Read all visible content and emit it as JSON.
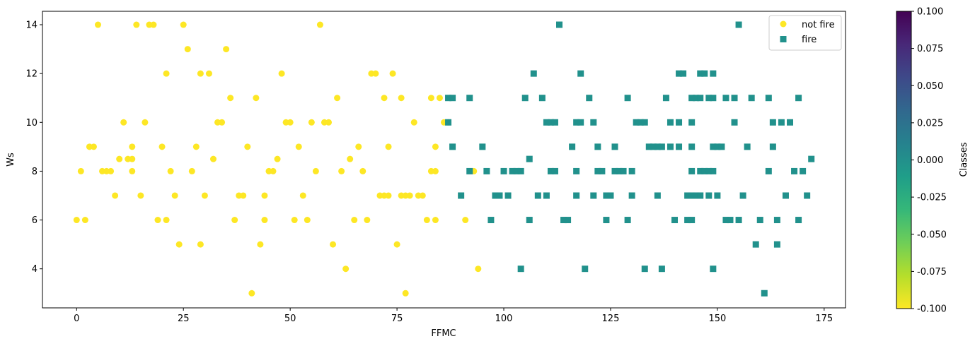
{
  "chart_data": {
    "type": "scatter",
    "xlabel": "FFMC",
    "ylabel": "Ws",
    "xlim": [
      -8,
      180
    ],
    "ylim": [
      2.4,
      14.55
    ],
    "xticks": [
      0,
      25,
      50,
      75,
      100,
      125,
      150,
      175
    ],
    "yticks": [
      4,
      6,
      8,
      10,
      12,
      14
    ],
    "grid": false,
    "legend": "top-right",
    "series": [
      {
        "name": "not fire",
        "marker": "circle",
        "color": "#fde725",
        "points": [
          [
            0,
            6
          ],
          [
            1,
            8
          ],
          [
            2,
            6
          ],
          [
            3,
            9
          ],
          [
            4,
            9
          ],
          [
            5,
            14
          ],
          [
            6,
            8
          ],
          [
            7,
            8
          ],
          [
            8,
            8
          ],
          [
            9,
            7
          ],
          [
            10,
            8.5
          ],
          [
            11,
            10
          ],
          [
            12,
            8.5
          ],
          [
            13,
            8.5
          ],
          [
            13,
            9
          ],
          [
            13,
            8
          ],
          [
            14,
            14
          ],
          [
            15,
            7
          ],
          [
            16,
            10
          ],
          [
            17,
            14
          ],
          [
            18,
            14
          ],
          [
            19,
            6
          ],
          [
            20,
            9
          ],
          [
            21,
            12
          ],
          [
            21,
            6
          ],
          [
            22,
            8
          ],
          [
            23,
            7
          ],
          [
            24,
            5
          ],
          [
            25,
            14
          ],
          [
            26,
            13
          ],
          [
            27,
            8
          ],
          [
            28,
            9
          ],
          [
            29,
            12
          ],
          [
            29,
            5
          ],
          [
            30,
            7
          ],
          [
            31,
            12
          ],
          [
            32,
            8.5
          ],
          [
            33,
            10
          ],
          [
            34,
            10
          ],
          [
            35,
            13
          ],
          [
            36,
            11
          ],
          [
            37,
            6
          ],
          [
            38,
            7
          ],
          [
            39,
            7
          ],
          [
            40,
            9
          ],
          [
            41,
            3
          ],
          [
            42,
            11
          ],
          [
            43,
            5
          ],
          [
            44,
            7
          ],
          [
            44,
            6
          ],
          [
            45,
            8
          ],
          [
            46,
            8
          ],
          [
            47,
            8.5
          ],
          [
            48,
            12
          ],
          [
            49,
            10
          ],
          [
            50,
            10
          ],
          [
            51,
            6
          ],
          [
            52,
            9
          ],
          [
            53,
            7
          ],
          [
            54,
            6
          ],
          [
            55,
            10
          ],
          [
            56,
            8
          ],
          [
            57,
            14
          ],
          [
            58,
            10
          ],
          [
            59,
            10
          ],
          [
            60,
            5
          ],
          [
            61,
            11
          ],
          [
            62,
            8
          ],
          [
            63,
            4
          ],
          [
            64,
            8.5
          ],
          [
            65,
            6
          ],
          [
            66,
            9
          ],
          [
            67,
            8
          ],
          [
            68,
            6
          ],
          [
            69,
            12
          ],
          [
            70,
            12
          ],
          [
            71,
            7
          ],
          [
            72,
            11
          ],
          [
            72,
            7
          ],
          [
            73,
            9
          ],
          [
            73,
            7
          ],
          [
            74,
            12
          ],
          [
            75,
            5
          ],
          [
            76,
            11
          ],
          [
            76,
            7
          ],
          [
            77,
            3
          ],
          [
            77,
            7
          ],
          [
            78,
            7
          ],
          [
            79,
            10
          ],
          [
            80,
            7
          ],
          [
            81,
            7
          ],
          [
            82,
            6
          ],
          [
            83,
            11
          ],
          [
            83,
            8
          ],
          [
            84,
            9
          ],
          [
            84,
            8
          ],
          [
            84,
            6
          ],
          [
            85,
            11
          ],
          [
            86,
            10
          ],
          [
            87,
            10
          ],
          [
            90,
            7
          ],
          [
            91,
            6
          ],
          [
            93,
            8
          ],
          [
            94,
            4
          ]
        ]
      },
      {
        "name": "fire",
        "marker": "square",
        "color": "#21918c",
        "points": [
          [
            87,
            10
          ],
          [
            87,
            11
          ],
          [
            88,
            11
          ],
          [
            88,
            9
          ],
          [
            90,
            7
          ],
          [
            92,
            11
          ],
          [
            92,
            8
          ],
          [
            95,
            9
          ],
          [
            96,
            8
          ],
          [
            97,
            6
          ],
          [
            98,
            7
          ],
          [
            99,
            7
          ],
          [
            100,
            8
          ],
          [
            101,
            7
          ],
          [
            102,
            8
          ],
          [
            103,
            8
          ],
          [
            104,
            8
          ],
          [
            104,
            4
          ],
          [
            105,
            11
          ],
          [
            106,
            6
          ],
          [
            106,
            8.5
          ],
          [
            107,
            12
          ],
          [
            108,
            7
          ],
          [
            109,
            11
          ],
          [
            110,
            10
          ],
          [
            110,
            7
          ],
          [
            111,
            8
          ],
          [
            111,
            10
          ],
          [
            112,
            8
          ],
          [
            112,
            10
          ],
          [
            113,
            14
          ],
          [
            114,
            6
          ],
          [
            115,
            6
          ],
          [
            116,
            9
          ],
          [
            117,
            10
          ],
          [
            117,
            8
          ],
          [
            117,
            7
          ],
          [
            118,
            12
          ],
          [
            118,
            10
          ],
          [
            119,
            4
          ],
          [
            120,
            11
          ],
          [
            121,
            10
          ],
          [
            121,
            7
          ],
          [
            122,
            9
          ],
          [
            122,
            8
          ],
          [
            123,
            8
          ],
          [
            124,
            7
          ],
          [
            124,
            6
          ],
          [
            125,
            7
          ],
          [
            126,
            9
          ],
          [
            126,
            8
          ],
          [
            127,
            8
          ],
          [
            128,
            8
          ],
          [
            129,
            11
          ],
          [
            129,
            6
          ],
          [
            130,
            8
          ],
          [
            130,
            7
          ],
          [
            131,
            10
          ],
          [
            132,
            10
          ],
          [
            133,
            10
          ],
          [
            133,
            4
          ],
          [
            134,
            9
          ],
          [
            135,
            9
          ],
          [
            136,
            9
          ],
          [
            136,
            7
          ],
          [
            137,
            9
          ],
          [
            137,
            4
          ],
          [
            138,
            11
          ],
          [
            139,
            10
          ],
          [
            139,
            9
          ],
          [
            140,
            6
          ],
          [
            141,
            12
          ],
          [
            141,
            10
          ],
          [
            141,
            9
          ],
          [
            142,
            12
          ],
          [
            143,
            7
          ],
          [
            143,
            6
          ],
          [
            144,
            11
          ],
          [
            144,
            10
          ],
          [
            144,
            9
          ],
          [
            144,
            8
          ],
          [
            144,
            7
          ],
          [
            144,
            6
          ],
          [
            145,
            11
          ],
          [
            145,
            7
          ],
          [
            146,
            12
          ],
          [
            146,
            11
          ],
          [
            146,
            8
          ],
          [
            146,
            7
          ],
          [
            147,
            12
          ],
          [
            147,
            8
          ],
          [
            148,
            11
          ],
          [
            148,
            8
          ],
          [
            148,
            7
          ],
          [
            149,
            12
          ],
          [
            149,
            11
          ],
          [
            149,
            9
          ],
          [
            149,
            8
          ],
          [
            149,
            4
          ],
          [
            150,
            9
          ],
          [
            150,
            7
          ],
          [
            151,
            9
          ],
          [
            152,
            11
          ],
          [
            152,
            6
          ],
          [
            153,
            6
          ],
          [
            154,
            11
          ],
          [
            154,
            10
          ],
          [
            155,
            14
          ],
          [
            155,
            6
          ],
          [
            156,
            7
          ],
          [
            157,
            9
          ],
          [
            158,
            11
          ],
          [
            159,
            5
          ],
          [
            160,
            6
          ],
          [
            161,
            3
          ],
          [
            162,
            11
          ],
          [
            162,
            8
          ],
          [
            163,
            10
          ],
          [
            163,
            9
          ],
          [
            164,
            6
          ],
          [
            164,
            5
          ],
          [
            165,
            10
          ],
          [
            166,
            7
          ],
          [
            167,
            10
          ],
          [
            168,
            8
          ],
          [
            169,
            11
          ],
          [
            169,
            6
          ],
          [
            170,
            8
          ],
          [
            171,
            7
          ],
          [
            172,
            8.5
          ]
        ]
      }
    ],
    "colorbar": {
      "label": "Classes",
      "min": -0.1,
      "max": 0.1,
      "ticks": [
        "-0.100",
        "-0.075",
        "-0.050",
        "-0.025",
        "0.000",
        "0.025",
        "0.050",
        "0.075",
        "0.100"
      ],
      "colors": [
        "#fde725",
        "#b5de2b",
        "#6ece58",
        "#35b779",
        "#1f9e89",
        "#26828e",
        "#31688e",
        "#3e4989",
        "#482878",
        "#440154"
      ]
    }
  }
}
